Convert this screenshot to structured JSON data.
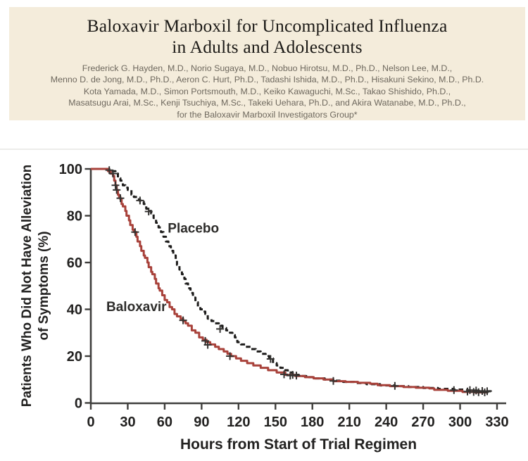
{
  "paper_header": {
    "background_color": "#f4ecdb",
    "title_line1": "Baloxavir Marboxil for Uncomplicated Influenza",
    "title_line2": "in Adults and Adolescents",
    "authors": [
      "Frederick G. Hayden, M.D., Norio Sugaya, M.D., Nobuo Hirotsu, M.D., Ph.D., Nelson Lee, M.D.,",
      "Menno D. de Jong, M.D., Ph.D., Aeron C. Hurt, Ph.D., Tadashi Ishida, M.D., Ph.D., Hisakuni Sekino, M.D., Ph.D.",
      "Kota Yamada, M.D., Simon Portsmouth, M.D., Keiko Kawaguchi, M.Sc., Takao Shishido, Ph.D.,",
      "Masatsugu Arai, M.Sc., Kenji Tsuchiya, M.Sc., Takeki Uehara, Ph.D., and Akira Watanabe, M.D., Ph.D.,",
      "for the Baloxavir Marboxil Investigators Group*"
    ]
  },
  "chart_data": {
    "type": "line",
    "variant": "kaplan_meier_step",
    "title": "",
    "xlabel": "Hours from Start of Trial Regimen",
    "ylabel_lines": [
      "Patients Who Did Not Have Alleviation",
      "of Symptoms (%)"
    ],
    "xlim": [
      0,
      330
    ],
    "ylim": [
      0,
      100
    ],
    "x_ticks": [
      0,
      30,
      60,
      90,
      120,
      150,
      180,
      210,
      240,
      270,
      300,
      330
    ],
    "y_ticks": [
      0,
      20,
      40,
      60,
      80,
      100
    ],
    "grid": false,
    "legend": "inline labels next to curves",
    "axis_color": "#3f3e3c",
    "text_color": "#222120",
    "censor_color": "#343230",
    "series": [
      {
        "name": "Placebo",
        "color": "#1d1c1b",
        "line_style": "dashed",
        "median_alleviation_hours": 80,
        "label": {
          "text": "Placebo",
          "h": 62.5,
          "p": 72.8
        },
        "points_h_pct": [
          [
            0,
            100
          ],
          [
            13,
            100
          ],
          [
            15,
            99
          ],
          [
            20,
            98
          ],
          [
            22,
            96
          ],
          [
            24,
            95
          ],
          [
            26,
            93
          ],
          [
            28,
            92
          ],
          [
            30,
            91
          ],
          [
            33,
            89
          ],
          [
            35,
            88
          ],
          [
            38,
            87
          ],
          [
            40,
            86
          ],
          [
            43,
            85
          ],
          [
            45,
            83
          ],
          [
            47,
            82
          ],
          [
            49,
            81
          ],
          [
            51,
            79
          ],
          [
            53,
            77
          ],
          [
            55,
            75
          ],
          [
            57,
            73
          ],
          [
            59,
            71
          ],
          [
            61,
            69
          ],
          [
            63,
            67
          ],
          [
            65,
            65
          ],
          [
            67,
            63
          ],
          [
            69,
            61
          ],
          [
            70,
            59
          ],
          [
            72,
            57
          ],
          [
            74,
            55
          ],
          [
            76,
            53
          ],
          [
            77,
            51
          ],
          [
            79,
            49
          ],
          [
            81,
            47
          ],
          [
            83,
            45
          ],
          [
            85,
            43
          ],
          [
            87,
            41
          ],
          [
            89,
            40
          ],
          [
            91,
            39
          ],
          [
            93,
            38
          ],
          [
            95,
            36
          ],
          [
            98,
            35
          ],
          [
            101,
            34
          ],
          [
            104,
            33
          ],
          [
            107,
            32
          ],
          [
            110,
            31
          ],
          [
            113,
            30
          ],
          [
            115,
            29
          ],
          [
            117,
            28
          ],
          [
            119,
            26
          ],
          [
            122,
            25
          ],
          [
            126,
            24
          ],
          [
            130,
            23
          ],
          [
            134,
            22
          ],
          [
            138,
            21
          ],
          [
            142,
            20
          ],
          [
            145,
            19
          ],
          [
            148,
            17
          ],
          [
            151,
            16
          ],
          [
            154,
            15
          ],
          [
            157,
            14
          ],
          [
            160,
            13
          ],
          [
            164,
            12
          ],
          [
            169,
            11.5
          ],
          [
            175,
            11
          ],
          [
            182,
            10.5
          ],
          [
            190,
            10
          ],
          [
            197,
            9.5
          ],
          [
            205,
            9
          ],
          [
            214,
            8.5
          ],
          [
            224,
            8
          ],
          [
            235,
            7.5
          ],
          [
            247,
            7.2
          ],
          [
            258,
            6.8
          ],
          [
            270,
            6.4
          ],
          [
            282,
            6
          ],
          [
            294,
            5.7
          ],
          [
            306,
            5.3
          ],
          [
            316,
            5
          ],
          [
            325,
            4.8
          ]
        ],
        "censor_marks_h_pct": [
          [
            40,
            86.5
          ],
          [
            47,
            81.8
          ],
          [
            105,
            31.6
          ],
          [
            146,
            18.8
          ],
          [
            164,
            12
          ],
          [
            167,
            11.7
          ],
          [
            197,
            9.4
          ],
          [
            247,
            7.3
          ],
          [
            295,
            5.5
          ],
          [
            308,
            5.5
          ],
          [
            313,
            5.3
          ],
          [
            318,
            5.1
          ],
          [
            322,
            5
          ]
        ]
      },
      {
        "name": "Baloxavir",
        "color": "#a8413a",
        "line_style": "solid",
        "median_alleviation_hours": 54,
        "label": {
          "text": "Baloxavir",
          "h": 12.6,
          "p": 39.3
        },
        "points_h_pct": [
          [
            0,
            100
          ],
          [
            13,
            100
          ],
          [
            14,
            99
          ],
          [
            16,
            98
          ],
          [
            18,
            97
          ],
          [
            19,
            95
          ],
          [
            20,
            93
          ],
          [
            21,
            91
          ],
          [
            22,
            89
          ],
          [
            23,
            88
          ],
          [
            24,
            87
          ],
          [
            25,
            85
          ],
          [
            26,
            84
          ],
          [
            28,
            82
          ],
          [
            29,
            80
          ],
          [
            31,
            78
          ],
          [
            32,
            76
          ],
          [
            34,
            74
          ],
          [
            35,
            73
          ],
          [
            37,
            71
          ],
          [
            38,
            69
          ],
          [
            40,
            67
          ],
          [
            41,
            65
          ],
          [
            43,
            63
          ],
          [
            44,
            62
          ],
          [
            46,
            60
          ],
          [
            47,
            58
          ],
          [
            49,
            56
          ],
          [
            50,
            55
          ],
          [
            52,
            53
          ],
          [
            53,
            51
          ],
          [
            55,
            49
          ],
          [
            56,
            48
          ],
          [
            58,
            46
          ],
          [
            60,
            44
          ],
          [
            62,
            43
          ],
          [
            64,
            41
          ],
          [
            66,
            40
          ],
          [
            68,
            38
          ],
          [
            70,
            37
          ],
          [
            73,
            36
          ],
          [
            75,
            35
          ],
          [
            77,
            34
          ],
          [
            79,
            33
          ],
          [
            82,
            31
          ],
          [
            85,
            30
          ],
          [
            88,
            28
          ],
          [
            91,
            27
          ],
          [
            94,
            26
          ],
          [
            97,
            25
          ],
          [
            101,
            24
          ],
          [
            104,
            23
          ],
          [
            108,
            22
          ],
          [
            111,
            21
          ],
          [
            114,
            20
          ],
          [
            118,
            19
          ],
          [
            122,
            18
          ],
          [
            127,
            17
          ],
          [
            132,
            16
          ],
          [
            138,
            15
          ],
          [
            144,
            14
          ],
          [
            151,
            13
          ],
          [
            158,
            12
          ],
          [
            166,
            11.5
          ],
          [
            174,
            11
          ],
          [
            181,
            10.5
          ],
          [
            189,
            10
          ],
          [
            197,
            9.3
          ],
          [
            207,
            9
          ],
          [
            217,
            8.6
          ],
          [
            227,
            8.2
          ],
          [
            233,
            7.6
          ],
          [
            243,
            7.2
          ],
          [
            254,
            6.8
          ],
          [
            264,
            6.5
          ],
          [
            275,
            6.2
          ],
          [
            279,
            5.6
          ],
          [
            290,
            5.2
          ],
          [
            302,
            4.7
          ],
          [
            312,
            4.5
          ],
          [
            322,
            4.3
          ]
        ],
        "censor_marks_h_pct": [
          [
            15,
            99.5
          ],
          [
            18,
            98
          ],
          [
            20,
            93
          ],
          [
            21,
            91
          ],
          [
            24,
            87.5
          ],
          [
            36,
            73
          ],
          [
            75,
            35.3
          ],
          [
            93,
            26.5
          ],
          [
            95,
            24.8
          ],
          [
            113,
            20
          ],
          [
            157,
            12.2
          ],
          [
            162,
            11.7
          ],
          [
            306,
            4.9
          ],
          [
            311,
            4.7
          ],
          [
            315,
            4.6
          ],
          [
            320,
            4.5
          ]
        ]
      }
    ]
  }
}
